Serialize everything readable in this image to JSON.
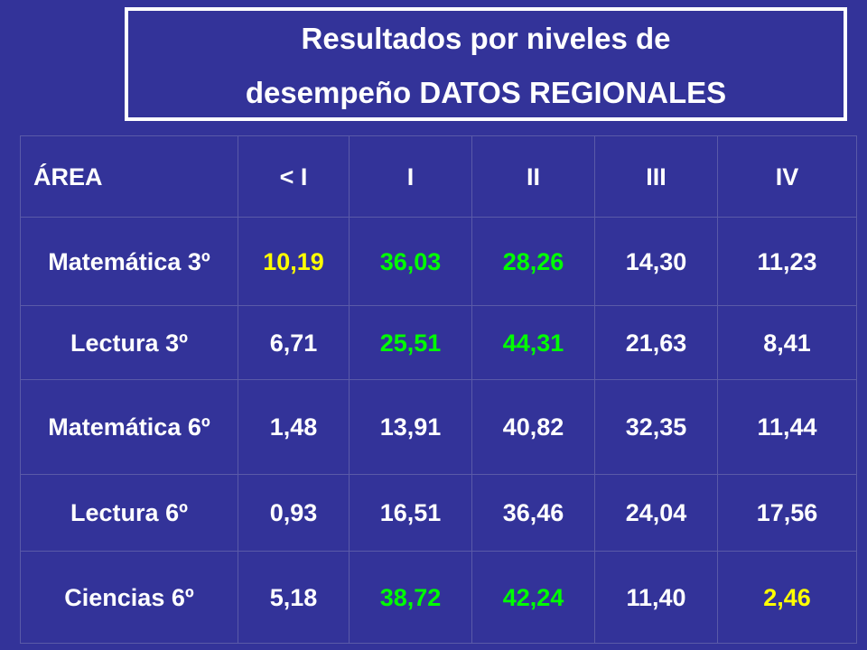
{
  "title": {
    "lines": [
      "Resultados por niveles de",
      "desempeño DATOS REGIONALES"
    ]
  },
  "table": {
    "header": [
      "ÁREA",
      "< I",
      "I",
      "II",
      "III",
      "IV"
    ],
    "rows": [
      {
        "area": "Matemática 3º",
        "cells": [
          {
            "text": "10,19",
            "color": "#ffff00"
          },
          {
            "text": "36,03",
            "color": "#00ff00"
          },
          {
            "text": "28,26",
            "color": "#00ff00"
          },
          {
            "text": "14,30",
            "color": "#ffffff"
          },
          {
            "text": "11,23",
            "color": "#ffffff"
          }
        ]
      },
      {
        "area": "Lectura 3º",
        "cells": [
          {
            "text": "6,71",
            "color": "#ffffff"
          },
          {
            "text": "25,51",
            "color": "#00ff00"
          },
          {
            "text": "44,31",
            "color": "#00ff00"
          },
          {
            "text": "21,63",
            "color": "#ffffff"
          },
          {
            "text": "8,41",
            "color": "#ffffff"
          }
        ]
      },
      {
        "area": "Matemática 6º",
        "cells": [
          {
            "text": "1,48",
            "color": "#ffffff"
          },
          {
            "text": "13,91",
            "color": "#ffffff"
          },
          {
            "text": "40,82",
            "color": "#ffffff"
          },
          {
            "text": "32,35",
            "color": "#ffffff"
          },
          {
            "text": "11,44",
            "color": "#ffffff"
          }
        ]
      },
      {
        "area": "Lectura 6º",
        "cells": [
          {
            "text": "0,93",
            "color": "#ffffff"
          },
          {
            "text": "16,51",
            "color": "#ffffff"
          },
          {
            "text": "36,46",
            "color": "#ffffff"
          },
          {
            "text": "24,04",
            "color": "#ffffff"
          },
          {
            "text": "17,56",
            "color": "#ffffff"
          }
        ]
      },
      {
        "area": "Ciencias 6º",
        "cells": [
          {
            "text": "5,18",
            "color": "#ffffff"
          },
          {
            "text": "38,72",
            "color": "#00ff00"
          },
          {
            "text": "42,24",
            "color": "#00ff00"
          },
          {
            "text": "11,40",
            "color": "#ffffff"
          },
          {
            "text": "2,46",
            "color": "#ffff00"
          }
        ]
      }
    ]
  }
}
